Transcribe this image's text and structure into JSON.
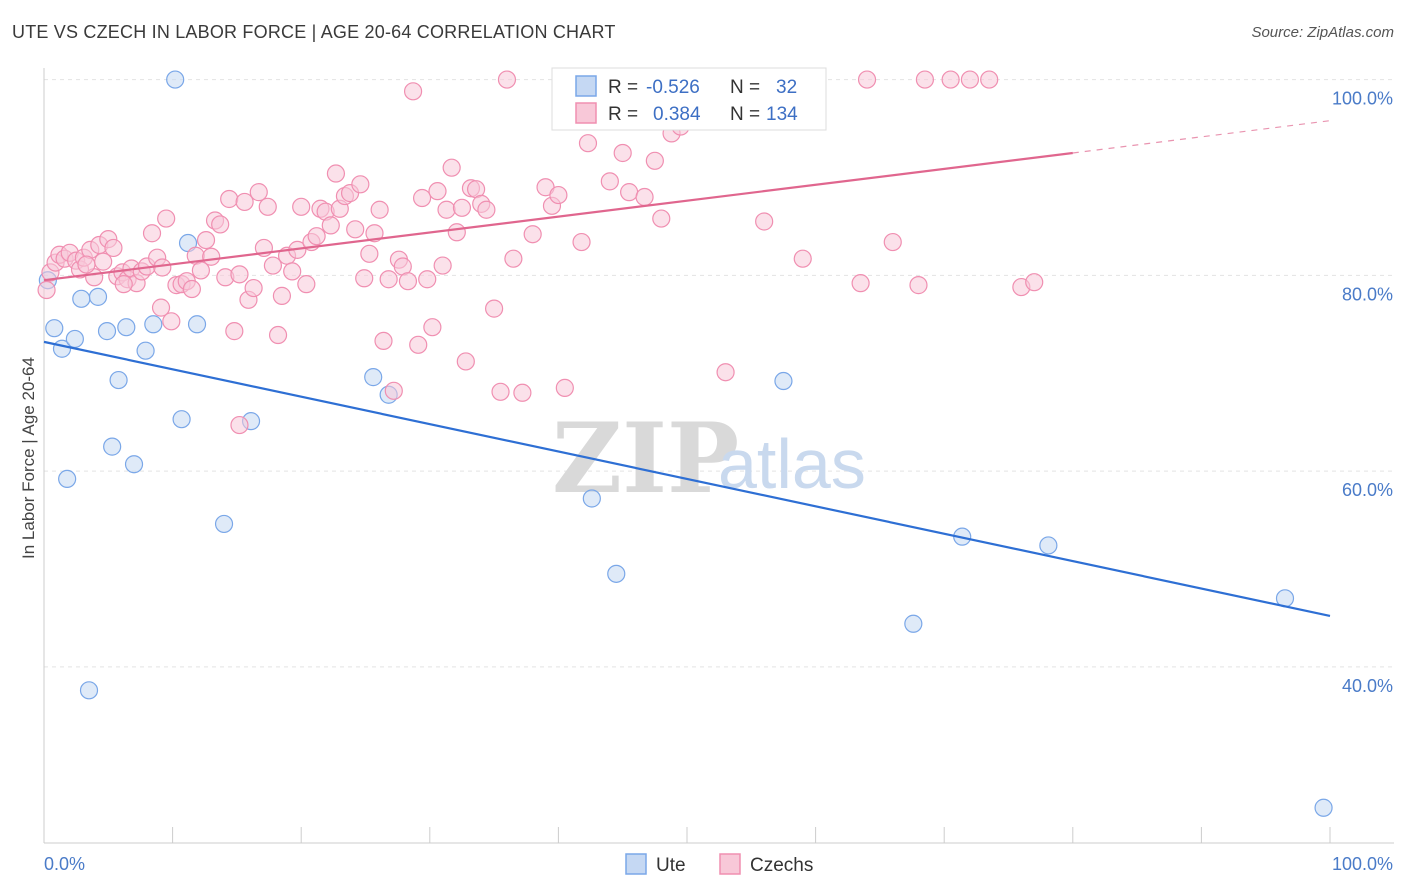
{
  "title": "UTE VS CZECH IN LABOR FORCE | AGE 20-64 CORRELATION CHART",
  "source": "Source: ZipAtlas.com",
  "watermark": {
    "zip": "ZIP",
    "atlas": "atlas"
  },
  "chart_data": {
    "type": "scatter",
    "ylabel": "In Labor Force | Age 20-64",
    "xlim": [
      0,
      100
    ],
    "ylim": [
      22,
      102
    ],
    "x_tick_labels": [
      {
        "value": 0,
        "label": "0.0%"
      },
      {
        "value": 100,
        "label": "100.0%"
      }
    ],
    "y_ticks": [
      {
        "value": 40,
        "label": "40.0%"
      },
      {
        "value": 60,
        "label": "60.0%"
      },
      {
        "value": 80,
        "label": "80.0%"
      },
      {
        "value": 100,
        "label": "100.0%"
      }
    ],
    "grid": true,
    "legend": {
      "placement": "top-center",
      "rows": [
        {
          "r_label": "R =",
          "r": "-0.526",
          "n_label": "N =",
          "n": "32",
          "color": "#7aa7e8"
        },
        {
          "r_label": "R =",
          "r": "0.384",
          "n_label": "N =",
          "n": "134",
          "color": "#f08fb1"
        }
      ]
    },
    "bottom_legend": [
      {
        "name": "Ute",
        "color": "#7aa7e8"
      },
      {
        "name": "Czechs",
        "color": "#f08fb1"
      }
    ],
    "series": [
      {
        "name": "Ute",
        "color": "#7aa7e8",
        "fill": "#c5d8f3",
        "trend": {
          "x0": 0,
          "y0": 73.2,
          "x1": 100,
          "y1": 45.2,
          "color": "#2e6fd4"
        },
        "points": [
          [
            0.3,
            79.5
          ],
          [
            0.8,
            74.6
          ],
          [
            1.4,
            72.5
          ],
          [
            1.8,
            59.2
          ],
          [
            2.4,
            73.5
          ],
          [
            2.9,
            77.6
          ],
          [
            3.5,
            37.6
          ],
          [
            4.2,
            77.8
          ],
          [
            4.9,
            74.3
          ],
          [
            5.3,
            62.5
          ],
          [
            5.8,
            69.3
          ],
          [
            6.4,
            74.7
          ],
          [
            7.0,
            60.7
          ],
          [
            7.9,
            72.3
          ],
          [
            8.5,
            75.0
          ],
          [
            10.2,
            100.0
          ],
          [
            10.7,
            65.3
          ],
          [
            11.2,
            83.3
          ],
          [
            11.9,
            75.0
          ],
          [
            14.0,
            54.6
          ],
          [
            16.1,
            65.1
          ],
          [
            25.6,
            69.6
          ],
          [
            26.8,
            67.8
          ],
          [
            42.6,
            57.2
          ],
          [
            44.5,
            49.5
          ],
          [
            56.1,
            100.0
          ],
          [
            57.5,
            69.2
          ],
          [
            67.6,
            44.4
          ],
          [
            71.4,
            53.3
          ],
          [
            78.1,
            52.4
          ],
          [
            96.5,
            47.0
          ],
          [
            99.5,
            25.6
          ]
        ]
      },
      {
        "name": "Czechs",
        "color": "#f08fb1",
        "fill": "#f8c8d8",
        "trend": {
          "x0": 0,
          "y0": 79.5,
          "x1": 80,
          "y1": 92.5,
          "dash_to_x": 100,
          "dash_to_y": 95.8,
          "color": "#e0668e"
        },
        "points": [
          [
            0.2,
            78.5
          ],
          [
            0.5,
            80.3
          ],
          [
            0.9,
            81.3
          ],
          [
            1.2,
            82.1
          ],
          [
            1.6,
            81.7
          ],
          [
            2.0,
            82.3
          ],
          [
            2.5,
            81.5
          ],
          [
            2.8,
            80.6
          ],
          [
            3.1,
            81.8
          ],
          [
            3.6,
            82.6
          ],
          [
            3.9,
            79.8
          ],
          [
            4.3,
            83.1
          ],
          [
            4.6,
            81.4
          ],
          [
            5.0,
            83.7
          ],
          [
            5.4,
            82.8
          ],
          [
            5.7,
            79.9
          ],
          [
            6.1,
            80.3
          ],
          [
            6.5,
            79.6
          ],
          [
            6.8,
            80.7
          ],
          [
            7.2,
            79.2
          ],
          [
            7.6,
            80.4
          ],
          [
            8.0,
            80.9
          ],
          [
            8.4,
            84.3
          ],
          [
            8.8,
            81.8
          ],
          [
            9.1,
            76.7
          ],
          [
            9.5,
            85.8
          ],
          [
            9.9,
            75.3
          ],
          [
            10.3,
            79.0
          ],
          [
            10.7,
            79.1
          ],
          [
            11.1,
            79.4
          ],
          [
            11.5,
            78.6
          ],
          [
            11.8,
            82.0
          ],
          [
            12.2,
            80.5
          ],
          [
            12.6,
            83.6
          ],
          [
            13.0,
            81.9
          ],
          [
            13.3,
            85.6
          ],
          [
            13.7,
            85.2
          ],
          [
            14.1,
            79.8
          ],
          [
            14.4,
            87.8
          ],
          [
            14.8,
            74.3
          ],
          [
            15.2,
            80.1
          ],
          [
            15.6,
            87.5
          ],
          [
            15.9,
            77.5
          ],
          [
            16.3,
            78.7
          ],
          [
            16.7,
            88.5
          ],
          [
            17.1,
            82.8
          ],
          [
            17.4,
            87.0
          ],
          [
            17.8,
            81.0
          ],
          [
            18.2,
            73.9
          ],
          [
            18.5,
            77.9
          ],
          [
            18.9,
            82.0
          ],
          [
            19.3,
            80.4
          ],
          [
            19.7,
            82.6
          ],
          [
            20.0,
            87.0
          ],
          [
            20.4,
            79.1
          ],
          [
            20.8,
            83.4
          ],
          [
            21.2,
            84.0
          ],
          [
            21.5,
            86.8
          ],
          [
            21.9,
            86.5
          ],
          [
            22.3,
            85.1
          ],
          [
            22.7,
            90.4
          ],
          [
            23.0,
            86.8
          ],
          [
            23.4,
            88.1
          ],
          [
            23.8,
            88.4
          ],
          [
            24.2,
            84.7
          ],
          [
            24.6,
            89.3
          ],
          [
            24.9,
            79.7
          ],
          [
            25.3,
            82.2
          ],
          [
            25.7,
            84.3
          ],
          [
            26.1,
            86.7
          ],
          [
            26.4,
            73.3
          ],
          [
            26.8,
            79.6
          ],
          [
            27.2,
            68.2
          ],
          [
            27.6,
            81.6
          ],
          [
            27.9,
            80.9
          ],
          [
            28.3,
            79.4
          ],
          [
            28.7,
            98.8
          ],
          [
            29.1,
            72.9
          ],
          [
            29.4,
            87.9
          ],
          [
            29.8,
            79.6
          ],
          [
            30.2,
            74.7
          ],
          [
            30.6,
            88.6
          ],
          [
            31.0,
            81.0
          ],
          [
            31.3,
            86.7
          ],
          [
            31.7,
            91.0
          ],
          [
            32.1,
            84.4
          ],
          [
            32.5,
            86.9
          ],
          [
            32.8,
            71.2
          ],
          [
            33.2,
            88.9
          ],
          [
            33.6,
            88.8
          ],
          [
            34.0,
            87.3
          ],
          [
            34.4,
            86.7
          ],
          [
            35.0,
            76.6
          ],
          [
            35.5,
            68.1
          ],
          [
            36.0,
            100.0
          ],
          [
            36.5,
            81.7
          ],
          [
            37.2,
            68.0
          ],
          [
            38.0,
            84.2
          ],
          [
            39.0,
            89.0
          ],
          [
            39.5,
            87.1
          ],
          [
            40.0,
            88.2
          ],
          [
            40.5,
            68.5
          ],
          [
            41.0,
            99.6
          ],
          [
            41.8,
            83.4
          ],
          [
            42.3,
            93.5
          ],
          [
            43.0,
            95.8
          ],
          [
            44.0,
            89.6
          ],
          [
            45.0,
            92.5
          ],
          [
            45.5,
            88.5
          ],
          [
            46.0,
            100.0
          ],
          [
            46.7,
            88.0
          ],
          [
            47.5,
            91.7
          ],
          [
            48.0,
            85.8
          ],
          [
            48.8,
            94.5
          ],
          [
            49.5,
            95.2
          ],
          [
            50.5,
            97.8
          ],
          [
            53.0,
            70.1
          ],
          [
            55.0,
            100.0
          ],
          [
            56.0,
            85.5
          ],
          [
            57.0,
            96.2
          ],
          [
            59.0,
            81.7
          ],
          [
            63.5,
            79.2
          ],
          [
            64.0,
            100.0
          ],
          [
            66.0,
            83.4
          ],
          [
            68.0,
            79.0
          ],
          [
            68.5,
            100.0
          ],
          [
            70.5,
            100.0
          ],
          [
            72.0,
            100.0
          ],
          [
            73.5,
            100.0
          ],
          [
            76.0,
            78.8
          ],
          [
            77.0,
            79.3
          ],
          [
            15.2,
            64.7
          ],
          [
            9.2,
            80.8
          ],
          [
            6.2,
            79.1
          ],
          [
            3.3,
            81.1
          ]
        ]
      }
    ]
  }
}
